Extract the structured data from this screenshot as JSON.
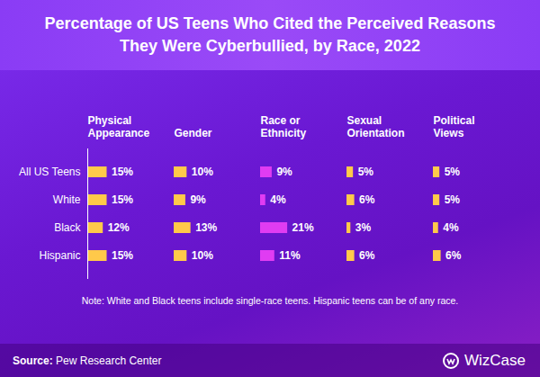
{
  "chart_data": {
    "type": "bar",
    "orientation": "horizontal",
    "title": "Percentage of US Teens Who Cited the Perceived Reasons They Were Cyberbullied, by Race, 2022",
    "categories": [
      "All US Teens",
      "White",
      "Black",
      "Hispanic"
    ],
    "series": [
      {
        "name": "Physical Appearance",
        "color": "#ffc94a",
        "values": [
          15,
          15,
          12,
          15
        ],
        "value_labels": [
          "15%",
          "15%",
          "12%",
          "15%"
        ]
      },
      {
        "name": "Gender",
        "color": "#ffc94a",
        "values": [
          10,
          9,
          13,
          10
        ],
        "value_labels": [
          "10%",
          "9%",
          "13%",
          "10%"
        ]
      },
      {
        "name": "Race or Ethnicity",
        "color": "#e03cf2",
        "values": [
          9,
          4,
          21,
          11
        ],
        "value_labels": [
          "9%",
          "4%",
          "21%",
          "11%"
        ]
      },
      {
        "name": "Sexual Orientation",
        "color": "#ffc94a",
        "values": [
          5,
          6,
          3,
          6
        ],
        "value_labels": [
          "5%",
          "6%",
          "3%",
          "6%"
        ]
      },
      {
        "name": "Political Views",
        "color": "#ffc94a",
        "values": [
          5,
          5,
          4,
          6
        ],
        "value_labels": [
          "5%",
          "5%",
          "4%",
          "6%"
        ]
      }
    ],
    "xlim": [
      0,
      60
    ],
    "data_labels": true,
    "tick_labels": "y",
    "note": "Note: White and Black teens include single-race teens. Hispanic teens can be of any race.",
    "source_label": "Source:",
    "source": "Pew Research Center",
    "brand": "WizCase"
  }
}
